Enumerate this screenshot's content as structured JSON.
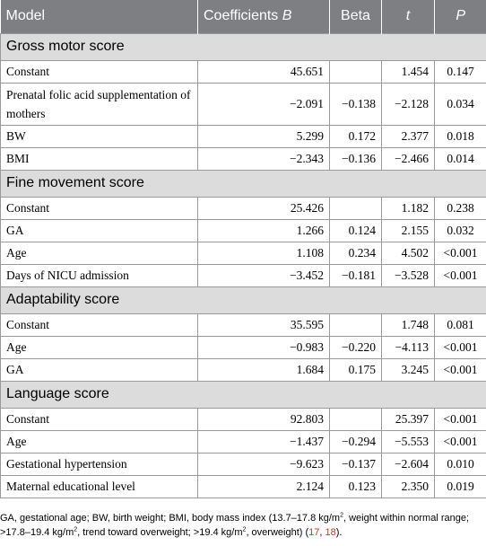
{
  "table": {
    "headers": {
      "model": "Model",
      "coef": "Coefficients B",
      "beta": "Beta",
      "t": "t",
      "p": "P"
    },
    "sections": [
      {
        "title": "Gross motor score",
        "rows": [
          {
            "label": "Constant",
            "b": "45.651",
            "beta": "",
            "t": "1.454",
            "p": "0.147"
          },
          {
            "label": "Prenatal folic acid supplementation of mothers",
            "b": "−2.091",
            "beta": "−0.138",
            "t": "−2.128",
            "p": "0.034"
          },
          {
            "label": "BW",
            "b": "5.299",
            "beta": "0.172",
            "t": "2.377",
            "p": "0.018"
          },
          {
            "label": "BMI",
            "b": "−2.343",
            "beta": "−0.136",
            "t": "−2.466",
            "p": "0.014"
          }
        ]
      },
      {
        "title": "Fine movement score",
        "rows": [
          {
            "label": "Constant",
            "b": "25.426",
            "beta": "",
            "t": "1.182",
            "p": "0.238"
          },
          {
            "label": "GA",
            "b": "1.266",
            "beta": "0.124",
            "t": "2.155",
            "p": "0.032"
          },
          {
            "label": "Age",
            "b": "1.108",
            "beta": "0.234",
            "t": "4.502",
            "p": "<0.001"
          },
          {
            "label": "Days of NICU admission",
            "b": "−3.452",
            "beta": "−0.181",
            "t": "−3.528",
            "p": "<0.001"
          }
        ]
      },
      {
        "title": "Adaptability score",
        "rows": [
          {
            "label": "Constant",
            "b": "35.595",
            "beta": "",
            "t": "1.748",
            "p": "0.081"
          },
          {
            "label": "Age",
            "b": "−0.983",
            "beta": "−0.220",
            "t": "−4.113",
            "p": "<0.001"
          },
          {
            "label": "GA",
            "b": "1.684",
            "beta": "0.175",
            "t": "3.245",
            "p": "<0.001"
          }
        ]
      },
      {
        "title": "Language score",
        "rows": [
          {
            "label": "Constant",
            "b": "92.803",
            "beta": "",
            "t": "25.397",
            "p": "<0.001"
          },
          {
            "label": "Age",
            "b": "−1.437",
            "beta": "−0.294",
            "t": "−5.553",
            "p": "<0.001"
          },
          {
            "label": "Gestational hypertension",
            "b": "−9.623",
            "beta": "−0.137",
            "t": "−2.604",
            "p": "0.010"
          },
          {
            "label": "Maternal educational level",
            "b": "2.124",
            "beta": "0.123",
            "t": "2.350",
            "p": "0.019"
          }
        ]
      }
    ]
  },
  "footnote": {
    "part1": "GA, gestational age; BW, birth weight; BMI, body mass index (13.7–17.8 kg/m",
    "sup1": "2",
    "part2": ", weight within normal range; >17.8–19.4 kg/m",
    "sup2": "2",
    "part3": ", trend toward overweight; >19.4 kg/m",
    "sup3": "2",
    "part4": ", overweight) (",
    "ref1": "17",
    "sep": ", ",
    "ref2": "18",
    "part5": ")."
  }
}
